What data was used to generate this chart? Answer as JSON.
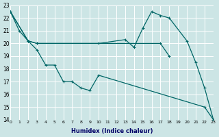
{
  "xlabel": "Humidex (Indice chaleur)",
  "bg_color": "#cce5e5",
  "grid_color": "#ffffff",
  "line_color": "#006666",
  "ylim": [
    14,
    23
  ],
  "xlim": [
    0,
    23
  ],
  "yticks": [
    14,
    15,
    16,
    17,
    18,
    19,
    20,
    21,
    22,
    23
  ],
  "xticks": [
    0,
    1,
    2,
    3,
    4,
    5,
    6,
    7,
    8,
    9,
    10,
    11,
    12,
    13,
    14,
    15,
    16,
    17,
    18,
    19,
    20,
    21,
    22,
    23
  ],
  "line1_x": [
    0,
    1,
    2,
    3,
    4,
    5,
    6,
    7,
    8,
    9,
    10,
    22,
    23
  ],
  "line1_y": [
    22.5,
    21.0,
    20.2,
    19.5,
    18.3,
    18.3,
    17.0,
    17.0,
    16.5,
    16.3,
    17.5,
    15.0,
    14.0
  ],
  "line2_x": [
    0,
    2,
    3,
    10,
    13,
    14,
    15,
    16,
    17,
    18,
    20,
    21,
    22,
    23
  ],
  "line2_y": [
    22.5,
    20.2,
    20.0,
    20.0,
    20.3,
    19.7,
    21.2,
    22.5,
    22.2,
    22.0,
    20.2,
    18.5,
    16.5,
    14.0
  ],
  "line3_x": [
    0,
    2,
    3,
    17,
    18
  ],
  "line3_y": [
    22.5,
    20.2,
    20.0,
    20.0,
    19.0
  ]
}
